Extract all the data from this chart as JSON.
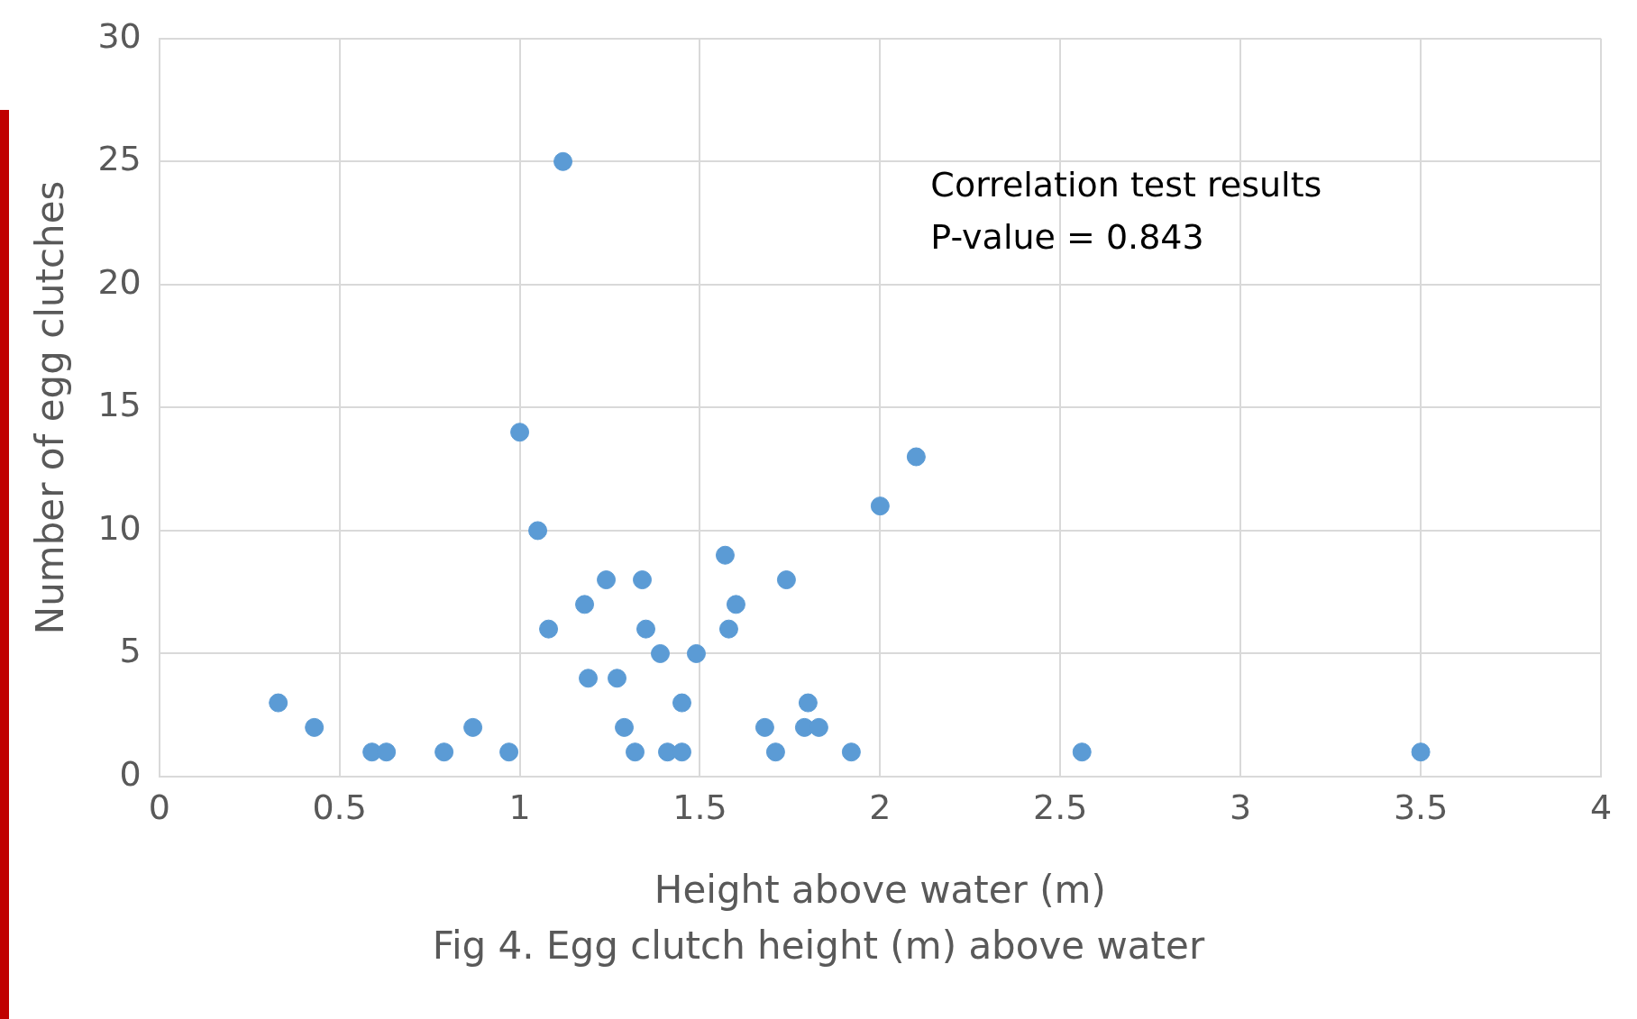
{
  "chart_data": {
    "type": "scatter",
    "xlabel": "Height above water (m)",
    "ylabel": "Number of egg clutches",
    "annotations": [
      "Correlation test results",
      "P-value = 0.843",
      "Fig 4. Egg clutch height (m) above water"
    ],
    "x": [
      0.33,
      0.43,
      0.59,
      0.63,
      0.79,
      0.87,
      0.97,
      1.0,
      1.12,
      1.05,
      1.08,
      1.18,
      1.19,
      1.24,
      1.27,
      1.29,
      1.32,
      1.34,
      1.35,
      1.39,
      1.41,
      1.45,
      1.45,
      1.49,
      1.57,
      1.58,
      1.6,
      1.68,
      1.71,
      1.74,
      1.8,
      1.79,
      1.83,
      1.92,
      2.0,
      2.1,
      2.56,
      3.5
    ],
    "values": [
      3,
      2,
      1,
      1,
      1,
      2,
      1,
      14,
      25,
      10,
      6,
      7,
      4,
      8,
      4,
      2,
      1,
      8,
      6,
      5,
      1,
      1,
      3,
      5,
      9,
      6,
      7,
      2,
      1,
      8,
      3,
      2,
      2,
      1,
      11,
      13,
      1,
      1
    ],
    "color": "#5b9bd5",
    "marker": "circle",
    "grid": true,
    "legend": false,
    "xlim": [
      0,
      4
    ],
    "xticks": [
      0,
      0.5,
      1,
      1.5,
      2,
      2.5,
      3,
      3.5,
      4
    ],
    "ylim": [
      0,
      30
    ],
    "yticks": [
      0,
      5,
      10,
      15,
      20,
      25,
      30
    ]
  }
}
